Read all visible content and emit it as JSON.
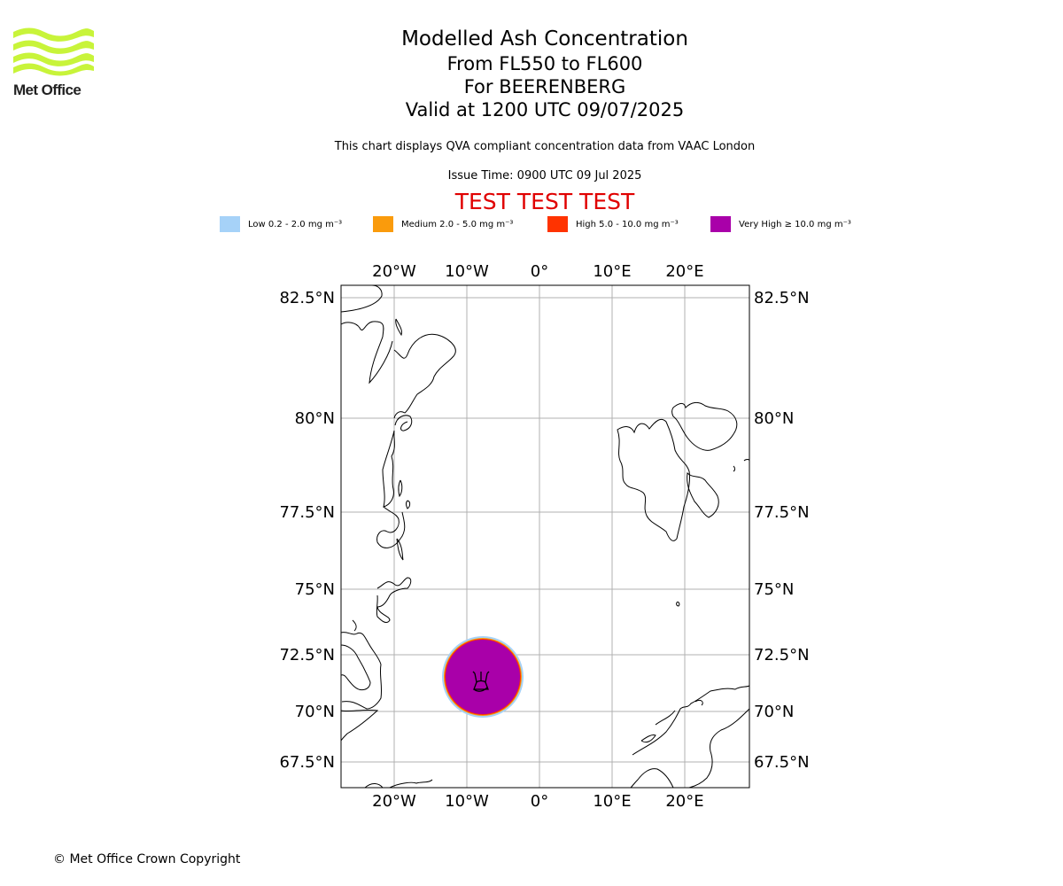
{
  "logo": {
    "text": "Met Office"
  },
  "title": {
    "main": "Modelled Ash Concentration",
    "levels": "From FL550 to FL600",
    "volcano": "For BEERENBERG",
    "valid": "Valid at 1200 UTC 09/07/2025"
  },
  "description": "This chart displays QVA compliant concentration data from VAAC London",
  "issue_time": "Issue Time: 0900 UTC 09 Jul 2025",
  "test_banner": "TEST TEST TEST",
  "legend": [
    {
      "label": "Low 0.2 - 2.0 mg m⁻³",
      "color": "#a6d2f8"
    },
    {
      "label": "Medium 2.0 - 5.0 mg m⁻³",
      "color": "#fa9b0c"
    },
    {
      "label": "High 5.0 - 10.0 mg m⁻³",
      "color": "#ff3300"
    },
    {
      "label": "Very High  ≥  10.0 mg m⁻³",
      "color": "#a900a9"
    }
  ],
  "map": {
    "lon_ticks": [
      "20°W",
      "10°W",
      "0°",
      "10°E",
      "20°E"
    ],
    "lat_ticks": [
      "82.5°N",
      "80°N",
      "77.5°N",
      "75°N",
      "72.5°N",
      "70°N",
      "67.5°N"
    ],
    "volcano_symbol": "volcano-icon"
  },
  "copyright": "© Met Office Crown Copyright"
}
